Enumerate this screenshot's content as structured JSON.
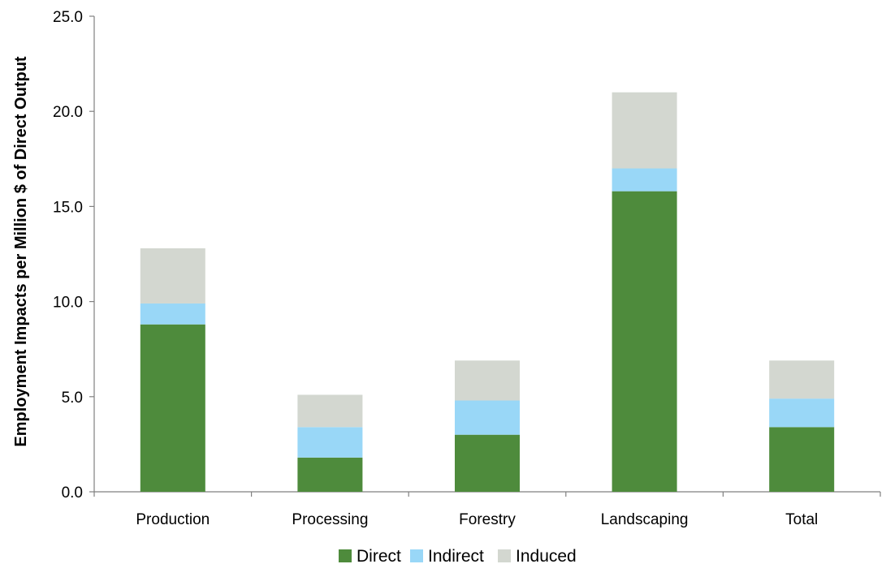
{
  "chart_data": {
    "type": "bar",
    "stacked": true,
    "title": "",
    "xlabel": "",
    "ylabel": "Employment Impacts per Million $ of Direct Output",
    "ylim": [
      0,
      25
    ],
    "yticks": [
      "0.0",
      "5.0",
      "10.0",
      "15.0",
      "20.0",
      "25.0"
    ],
    "categories": [
      "Production",
      "Processing",
      "Forestry",
      "Landscaping",
      "Total"
    ],
    "series": [
      {
        "name": "Direct",
        "color": "#4e8b3c",
        "values": [
          8.8,
          1.8,
          3.0,
          15.8,
          3.4
        ]
      },
      {
        "name": "Indirect",
        "color": "#99d7f7",
        "values": [
          1.1,
          1.6,
          1.8,
          1.2,
          1.5
        ]
      },
      {
        "name": "Induced",
        "color": "#d3d7d0",
        "values": [
          2.9,
          1.7,
          2.1,
          4.0,
          2.0
        ]
      }
    ],
    "grid": false,
    "legend_position": "bottom"
  }
}
